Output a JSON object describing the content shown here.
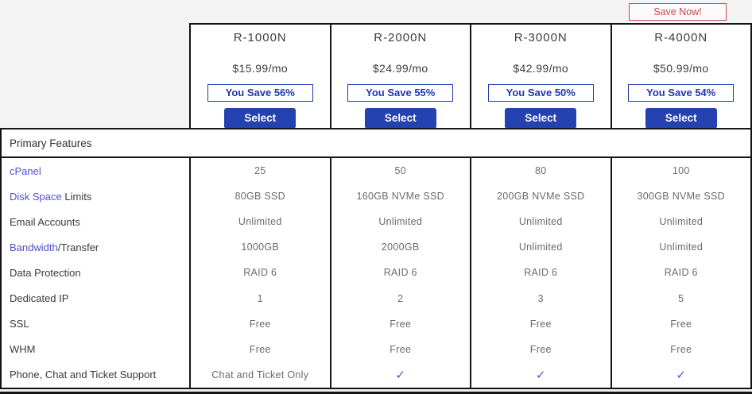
{
  "promo": {
    "save_now_label": "Save Now!"
  },
  "plans": [
    {
      "name": "R-1000N",
      "price": "$15.99/mo",
      "save_badge": "You Save 56%",
      "select_label": "Select"
    },
    {
      "name": "R-2000N",
      "price": "$24.99/mo",
      "save_badge": "You Save 55%",
      "select_label": "Select"
    },
    {
      "name": "R-3000N",
      "price": "$42.99/mo",
      "save_badge": "You Save 50%",
      "select_label": "Select"
    },
    {
      "name": "R-4000N",
      "price": "$50.99/mo",
      "save_badge": "You Save 54%",
      "select_label": "Select"
    }
  ],
  "features": {
    "section_title": "Primary Features",
    "rows": [
      {
        "label_link": "cPanel",
        "label_rest": "",
        "values": [
          "25",
          "50",
          "80",
          "100"
        ]
      },
      {
        "label_link": "Disk Space",
        "label_rest": " Limits",
        "values": [
          "80GB SSD",
          "160GB NVMe SSD",
          "200GB NVMe SSD",
          "300GB NVMe SSD"
        ]
      },
      {
        "label_link": "",
        "label_rest": "Email Accounts",
        "values": [
          "Unlimited",
          "Unlimited",
          "Unlimited",
          "Unlimited"
        ]
      },
      {
        "label_link": "Bandwidth",
        "label_rest": "/Transfer",
        "values": [
          "1000GB",
          "2000GB",
          "Unlimited",
          "Unlimited"
        ]
      },
      {
        "label_link": "",
        "label_rest": "Data Protection",
        "values": [
          "RAID 6",
          "RAID 6",
          "RAID 6",
          "RAID 6"
        ]
      },
      {
        "label_link": "",
        "label_rest": "Dedicated IP",
        "values": [
          "1",
          "2",
          "3",
          "5"
        ]
      },
      {
        "label_link": "",
        "label_rest": "SSL",
        "values": [
          "Free",
          "Free",
          "Free",
          "Free"
        ]
      },
      {
        "label_link": "",
        "label_rest": "WHM",
        "values": [
          "Free",
          "Free",
          "Free",
          "Free"
        ]
      },
      {
        "label_link": "",
        "label_rest": "Phone, Chat and Ticket Support",
        "values": [
          "Chat and Ticket Only",
          "✓",
          "✓",
          "✓"
        ]
      }
    ]
  },
  "colors": {
    "accent_blue": "#2442b0",
    "badge_blue": "#2038ae",
    "link_blue": "#5050d2",
    "check_blue": "#4a5ad2",
    "promo_red": "#c5494d",
    "border_black": "#141414",
    "page_background": "#f4f3f3"
  }
}
